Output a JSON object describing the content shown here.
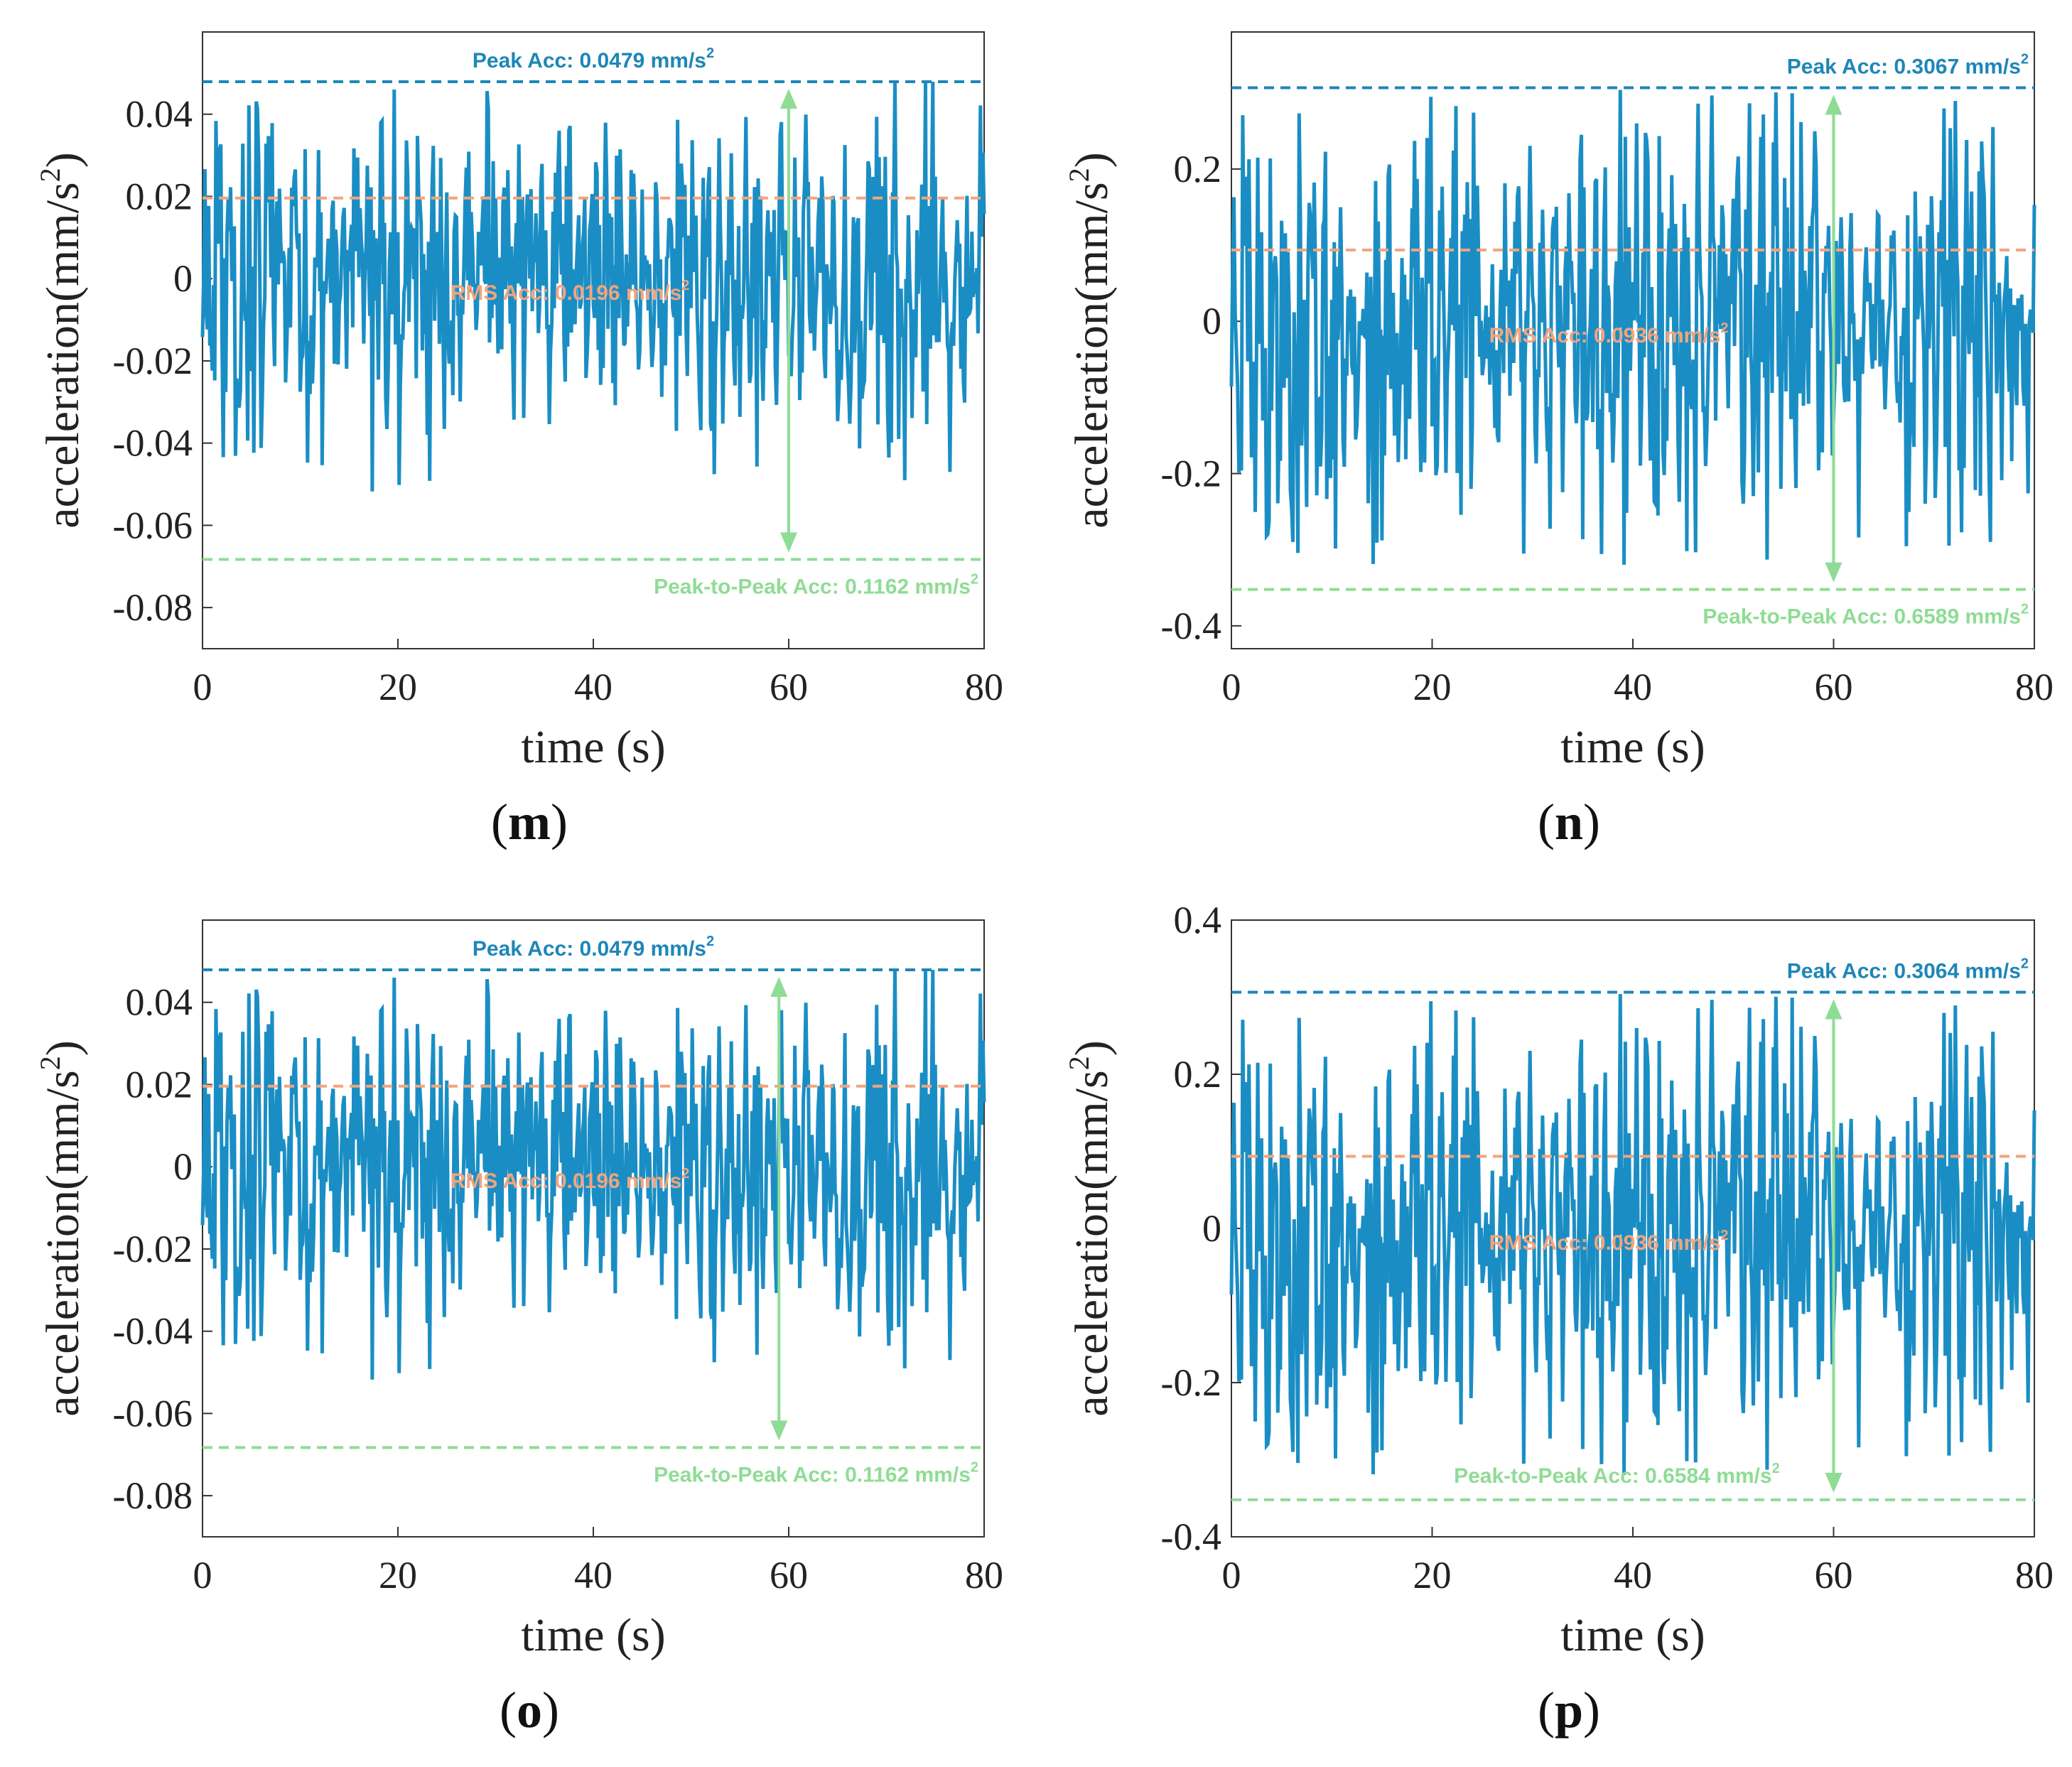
{
  "chart_data": [
    {
      "type": "line",
      "panel_label": "m",
      "xlabel": "time (s)",
      "ylabel": "acceleration(mm/s",
      "ylabel_sup": "2",
      "ylabel_close": ")",
      "xlim": [
        0,
        80
      ],
      "ylim": [
        -0.09,
        0.06
      ],
      "xticks": [
        "0",
        "20",
        "40",
        "60",
        "80"
      ],
      "xtick_values": [
        0,
        20,
        40,
        60,
        80
      ],
      "yticks": [
        "0.04",
        "0.02",
        "0",
        "-0.02",
        "-0.04",
        "-0.06",
        "-0.08"
      ],
      "ytick_values": [
        0.04,
        0.02,
        0,
        -0.02,
        -0.04,
        -0.06,
        -0.08
      ],
      "peak_value": 0.0479,
      "rms_value": 0.0196,
      "trough_value": -0.0683,
      "peak_label": "Peak Acc: 0.0479 mm/s",
      "rms_label": "RMS Acc: 0.0196 mm/s",
      "p2p_label": "Peak-to-Peak Acc: 0.1162 mm/s",
      "unit_sup": "2",
      "arrow_x": 60,
      "peak_label_pos": "top-center",
      "rms_label_pos": "center",
      "p2p_label_pos": "bottom-right",
      "series": [
        {
          "name": "acceleration",
          "amplitude": 0.052,
          "seed": 11,
          "color": "#1a8ec4"
        }
      ]
    },
    {
      "type": "line",
      "panel_label": "n",
      "xlabel": "time (s)",
      "ylabel": "acceleration(mm/s",
      "ylabel_sup": "2",
      "ylabel_close": ")",
      "xlim": [
        0,
        80
      ],
      "ylim": [
        -0.43,
        0.38
      ],
      "xticks": [
        "0",
        "20",
        "40",
        "60",
        "80"
      ],
      "xtick_values": [
        0,
        20,
        40,
        60,
        80
      ],
      "yticks": [
        "0.2",
        "0",
        "-0.2",
        "-0.4"
      ],
      "ytick_values": [
        0.2,
        0,
        -0.2,
        -0.4
      ],
      "peak_value": 0.3067,
      "rms_value": 0.0936,
      "trough_value": -0.3522,
      "peak_label": "Peak Acc: 0.3067 mm/s",
      "rms_label": "RMS Acc: 0.0936 mm/s",
      "p2p_label": "Peak-to-Peak Acc: 0.6589 mm/s",
      "unit_sup": "2",
      "arrow_x": 60,
      "peak_label_pos": "top-right",
      "rms_label_pos": "center",
      "p2p_label_pos": "bottom-right",
      "series": [
        {
          "name": "acceleration",
          "amplitude": 0.32,
          "seed": 23,
          "color": "#1a8ec4"
        }
      ]
    },
    {
      "type": "line",
      "panel_label": "o",
      "xlabel": "time (s)",
      "ylabel": "acceleration(mm/s",
      "ylabel_sup": "2",
      "ylabel_close": ")",
      "xlim": [
        0,
        80
      ],
      "ylim": [
        -0.09,
        0.06
      ],
      "xticks": [
        "0",
        "20",
        "40",
        "60",
        "80"
      ],
      "xtick_values": [
        0,
        20,
        40,
        60,
        80
      ],
      "yticks": [
        "0.04",
        "0.02",
        "0",
        "-0.02",
        "-0.04",
        "-0.06",
        "-0.08"
      ],
      "ytick_values": [
        0.04,
        0.02,
        0,
        -0.02,
        -0.04,
        -0.06,
        -0.08
      ],
      "peak_value": 0.0479,
      "rms_value": 0.0196,
      "trough_value": -0.0683,
      "peak_label": "Peak Acc: 0.0479 mm/s",
      "rms_label": "RMS Acc: 0.0196 mm/s",
      "p2p_label": "Peak-to-Peak Acc: 0.1162 mm/s",
      "unit_sup": "2",
      "arrow_x": 59,
      "peak_label_pos": "top-center",
      "rms_label_pos": "center",
      "p2p_label_pos": "bottom-right",
      "series": [
        {
          "name": "acceleration",
          "amplitude": 0.052,
          "seed": 11,
          "color": "#1a8ec4"
        }
      ]
    },
    {
      "type": "line",
      "panel_label": "p",
      "xlabel": "time (s)",
      "ylabel": "acceleration(mm/s",
      "ylabel_sup": "2",
      "ylabel_close": ")",
      "xlim": [
        0,
        80
      ],
      "ylim": [
        -0.4,
        0.4
      ],
      "xticks": [
        "0",
        "20",
        "40",
        "60",
        "80"
      ],
      "xtick_values": [
        0,
        20,
        40,
        60,
        80
      ],
      "yticks": [
        "0.4",
        "0.2",
        "0",
        "-0.2",
        "-0.4"
      ],
      "ytick_values": [
        0.4,
        0.2,
        0,
        -0.2,
        -0.4
      ],
      "peak_value": 0.3064,
      "rms_value": 0.0936,
      "trough_value": -0.352,
      "peak_label": "Peak Acc: 0.3064 mm/s",
      "rms_label": "RMS Acc: 0.0936 mm/s",
      "p2p_label": "Peak-to-Peak Acc: 0.6584 mm/s",
      "unit_sup": "2",
      "arrow_x": 60,
      "peak_label_pos": "top-right",
      "rms_label_pos": "center",
      "p2p_label_pos": "bottom-center",
      "series": [
        {
          "name": "acceleration",
          "amplitude": 0.32,
          "seed": 23,
          "color": "#1a8ec4"
        }
      ]
    }
  ],
  "colors": {
    "signal": "#1a8ec4",
    "peak": "#1e86b8",
    "rms": "#f3a47c",
    "p2p": "#8fdc95",
    "axis": "#222222"
  }
}
